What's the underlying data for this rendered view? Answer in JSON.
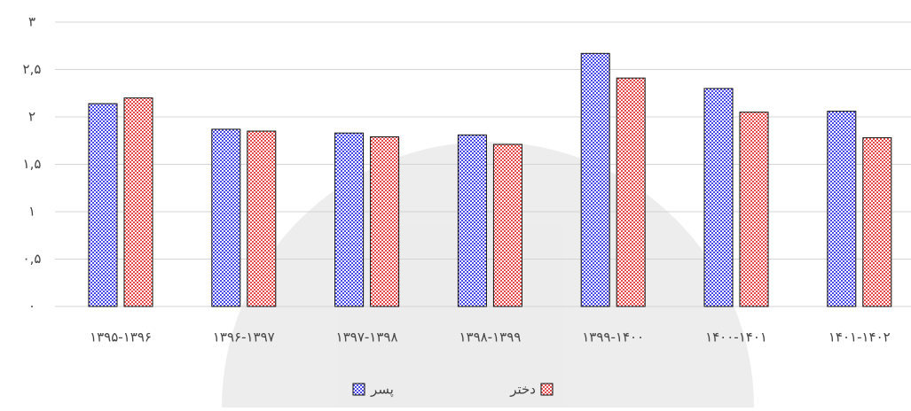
{
  "chart_data": {
    "type": "bar",
    "categories": [
      "۱۳۹۵-۱۳۹۶",
      "۱۳۹۶-۱۳۹۷",
      "۱۳۹۷-۱۳۹۸",
      "۱۳۹۸-۱۳۹۹",
      "۱۳۹۹-۱۴۰۰",
      "۱۴۰۰-۱۴۰۱",
      "۱۴۰۱-۱۴۰۲"
    ],
    "series": [
      {
        "name": "پسر",
        "color": "#4a4ae8",
        "values": [
          2.14,
          1.87,
          1.83,
          1.81,
          2.67,
          2.3,
          2.06
        ]
      },
      {
        "name": "دختر",
        "color": "#e84a4a",
        "values": [
          2.2,
          1.85,
          1.79,
          1.71,
          2.41,
          2.05,
          1.78
        ]
      }
    ],
    "ylim": [
      0,
      3
    ],
    "yticks": [
      {
        "value": 0,
        "label": "۰"
      },
      {
        "value": 0.5,
        "label": "۰,۵"
      },
      {
        "value": 1,
        "label": "۱"
      },
      {
        "value": 1.5,
        "label": "۱,۵"
      },
      {
        "value": 2,
        "label": "۲"
      },
      {
        "value": 2.5,
        "label": "۲,۵"
      },
      {
        "value": 3,
        "label": "۳"
      }
    ],
    "grid": true
  }
}
